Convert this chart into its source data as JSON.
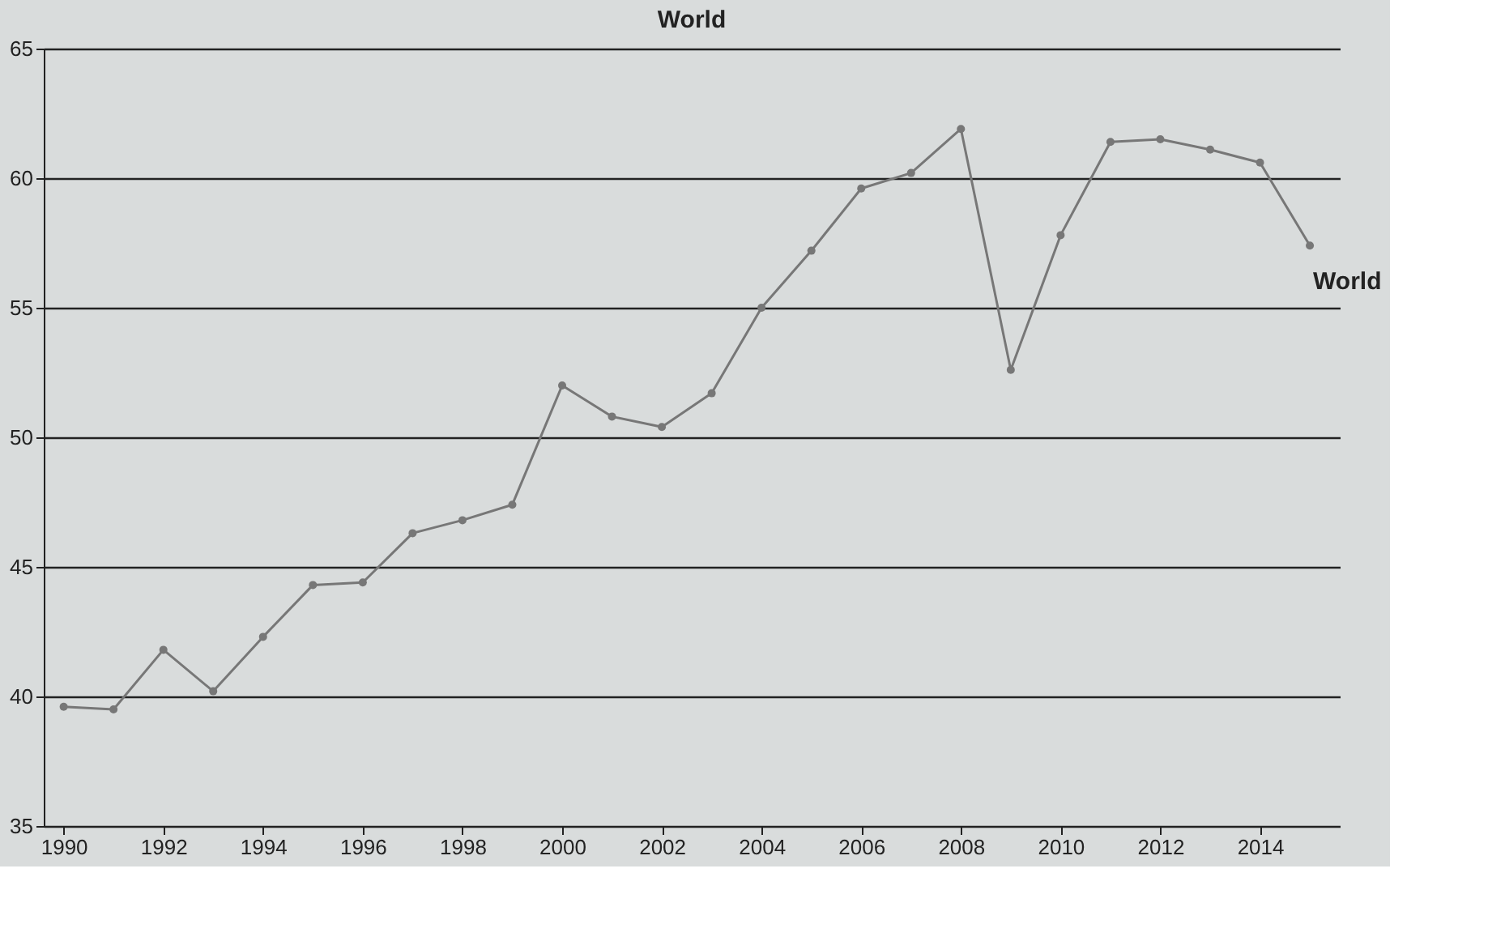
{
  "chart_data": {
    "type": "line",
    "title": "World",
    "x": [
      1990,
      1991,
      1992,
      1993,
      1994,
      1995,
      1996,
      1997,
      1998,
      1999,
      2000,
      2001,
      2002,
      2003,
      2004,
      2005,
      2006,
      2007,
      2008,
      2009,
      2010,
      2011,
      2012,
      2013,
      2014,
      2015
    ],
    "series": [
      {
        "name": "World",
        "color": "#777777",
        "values": [
          39.6,
          39.5,
          41.8,
          40.2,
          42.3,
          44.3,
          44.4,
          46.3,
          46.8,
          47.4,
          52.0,
          50.8,
          50.4,
          51.7,
          55.0,
          57.2,
          59.6,
          60.2,
          61.9,
          52.6,
          57.8,
          61.4,
          61.5,
          61.1,
          60.6,
          57.4
        ]
      }
    ],
    "xlim": [
      1989.6,
      2015.6
    ],
    "xticks": [
      1990,
      1992,
      1994,
      1996,
      1998,
      2000,
      2002,
      2004,
      2006,
      2008,
      2010,
      2012,
      2014
    ],
    "ylim": [
      35,
      65
    ],
    "yticks": [
      35,
      40,
      45,
      50,
      55,
      60,
      65
    ],
    "grid": "y",
    "marker": "circle",
    "line_style": "solid",
    "legend": false
  }
}
